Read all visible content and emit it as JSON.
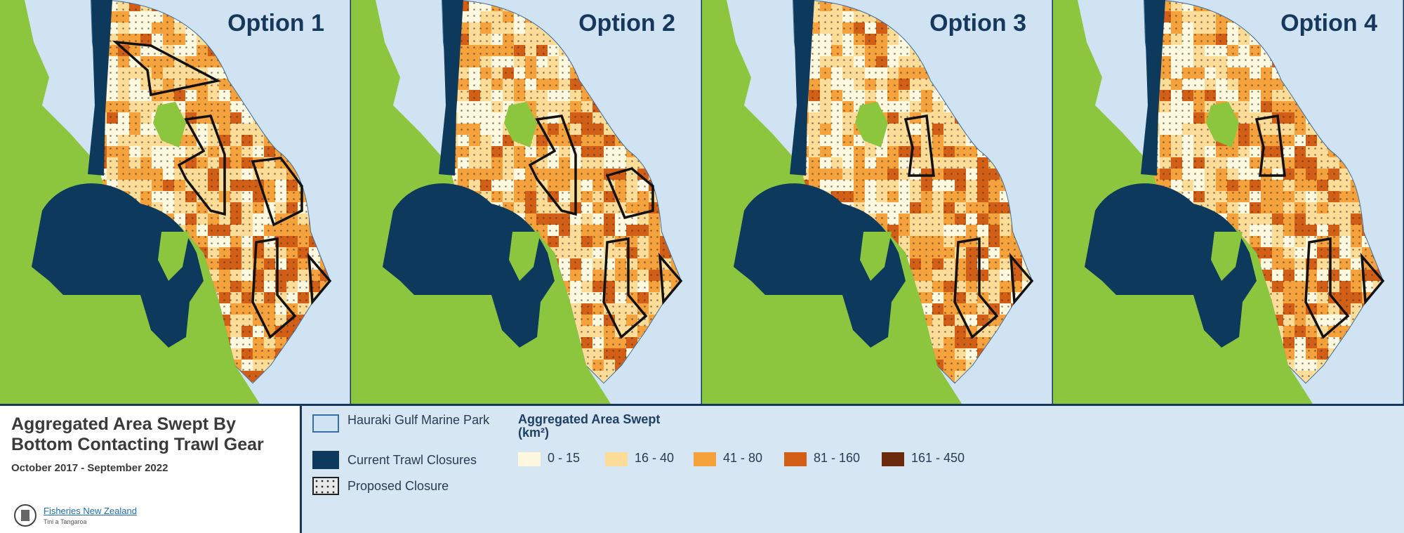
{
  "panels": [
    {
      "title": "Option 1"
    },
    {
      "title": "Option 2"
    },
    {
      "title": "Option 3"
    },
    {
      "title": "Option 4"
    }
  ],
  "legend": {
    "title": "Aggregated Area Swept By Bottom Contacting Trawl Gear",
    "period": "October 2017 - September 2022",
    "agency": "Fisheries New Zealand",
    "agency_sub": "Tini a Tangaroa",
    "layers": [
      "Hauraki Gulf Marine Park",
      "Current Trawl Closures",
      "Proposed Closure"
    ],
    "scale_title": "Aggregated Area Swept",
    "scale_unit": "(km²)",
    "classes": [
      {
        "label": "0 - 15",
        "color": "#fef8df"
      },
      {
        "label": "16 - 40",
        "color": "#fcdc97"
      },
      {
        "label": "41 - 80",
        "color": "#f6a23c"
      },
      {
        "label": "81 - 160",
        "color": "#d35f17"
      },
      {
        "label": "161 - 450",
        "color": "#6a2a0e"
      }
    ]
  }
}
